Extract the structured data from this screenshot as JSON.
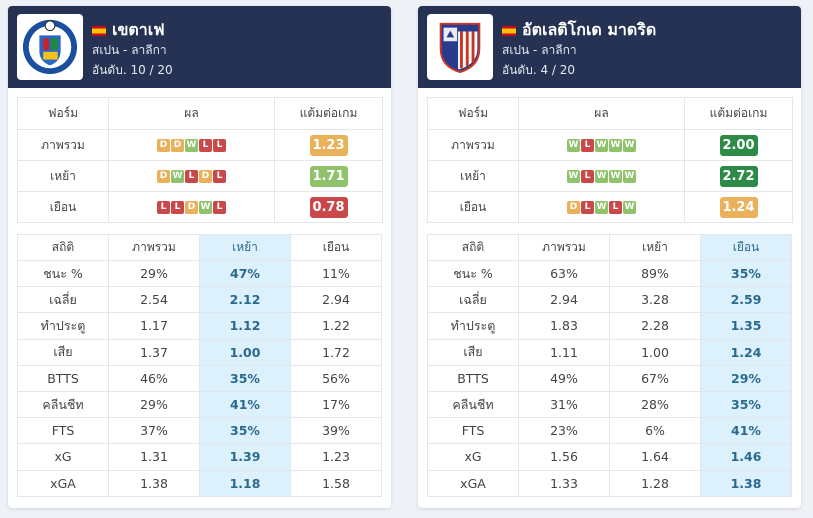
{
  "colors": {
    "win": "#8fc26b",
    "draw": "#e8b15a",
    "loss": "#c9494b",
    "highlight": "#dcf1fb",
    "header": "#253253"
  },
  "teams": [
    {
      "name": "เขตาเฟ",
      "country_league": "สเปน - ลาลีกา",
      "rank": "อันดับ. 10 / 20",
      "logo_icon": "getafe-crest-icon",
      "form_headers": [
        "ฟอร์ม",
        "ผล",
        "แต้มต่อเกม"
      ],
      "form_rows": [
        {
          "label": "ภาพรวม",
          "results": [
            "D",
            "D",
            "W",
            "L",
            "L"
          ],
          "ppg": "1.23",
          "ppg_color": "#e8b15a"
        },
        {
          "label": "เหย้า",
          "results": [
            "D",
            "W",
            "L",
            "D",
            "L"
          ],
          "ppg": "1.71",
          "ppg_color": "#8fc26b"
        },
        {
          "label": "เยือน",
          "results": [
            "L",
            "L",
            "D",
            "W",
            "L"
          ],
          "ppg": "0.78",
          "ppg_color": "#c9494b"
        }
      ],
      "stats_headers": [
        "สถิติ",
        "ภาพรวม",
        "เหย้า",
        "เยือน"
      ],
      "highlight_col": 2,
      "stats_rows": [
        [
          "ชนะ %",
          "29%",
          "47%",
          "11%"
        ],
        [
          "เฉลี่ย",
          "2.54",
          "2.12",
          "2.94"
        ],
        [
          "ทำประตู",
          "1.17",
          "1.12",
          "1.22"
        ],
        [
          "เสีย",
          "1.37",
          "1.00",
          "1.72"
        ],
        [
          "BTTS",
          "46%",
          "35%",
          "56%"
        ],
        [
          "คลีนชีท",
          "29%",
          "41%",
          "17%"
        ],
        [
          "FTS",
          "37%",
          "35%",
          "39%"
        ],
        [
          "xG",
          "1.31",
          "1.39",
          "1.23"
        ],
        [
          "xGA",
          "1.38",
          "1.18",
          "1.58"
        ]
      ]
    },
    {
      "name": "อัตเลติโกเด มาดริด",
      "country_league": "สเปน - ลาลีกา",
      "rank": "อันดับ. 4 / 20",
      "logo_icon": "atletico-crest-icon",
      "form_headers": [
        "ฟอร์ม",
        "ผล",
        "แต้มต่อเกม"
      ],
      "form_rows": [
        {
          "label": "ภาพรวม",
          "results": [
            "W",
            "L",
            "W",
            "W",
            "W"
          ],
          "ppg": "2.00",
          "ppg_color": "#2e8b47"
        },
        {
          "label": "เหย้า",
          "results": [
            "W",
            "L",
            "W",
            "W",
            "W"
          ],
          "ppg": "2.72",
          "ppg_color": "#2e8b47"
        },
        {
          "label": "เยือน",
          "results": [
            "D",
            "L",
            "W",
            "L",
            "W"
          ],
          "ppg": "1.24",
          "ppg_color": "#e8b15a"
        }
      ],
      "stats_headers": [
        "สถิติ",
        "ภาพรวม",
        "เหย้า",
        "เยือน"
      ],
      "highlight_col": 3,
      "stats_rows": [
        [
          "ชนะ %",
          "63%",
          "89%",
          "35%"
        ],
        [
          "เฉลี่ย",
          "2.94",
          "3.28",
          "2.59"
        ],
        [
          "ทำประตู",
          "1.83",
          "2.28",
          "1.35"
        ],
        [
          "เสีย",
          "1.11",
          "1.00",
          "1.24"
        ],
        [
          "BTTS",
          "49%",
          "67%",
          "29%"
        ],
        [
          "คลีนชีท",
          "31%",
          "28%",
          "35%"
        ],
        [
          "FTS",
          "23%",
          "6%",
          "41%"
        ],
        [
          "xG",
          "1.56",
          "1.64",
          "1.46"
        ],
        [
          "xGA",
          "1.33",
          "1.28",
          "1.38"
        ]
      ]
    }
  ]
}
